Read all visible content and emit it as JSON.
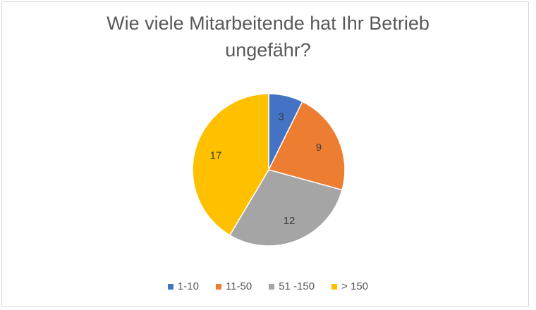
{
  "chart_data": {
    "type": "pie",
    "title_lines": [
      "Wie viele Mitarbeitende hat Ihr Betrieb",
      "ungefähr?"
    ],
    "categories": [
      "1-10",
      "11-50",
      "51 -150",
      "> 150"
    ],
    "values": [
      3,
      9,
      12,
      17
    ],
    "colors": [
      "#4472c4",
      "#ed7d31",
      "#a5a5a5",
      "#ffc000"
    ],
    "data_labels": [
      "3",
      "9",
      "12",
      "17"
    ],
    "legend_position": "bottom",
    "start_angle": "12 o'clock, clockwise"
  }
}
